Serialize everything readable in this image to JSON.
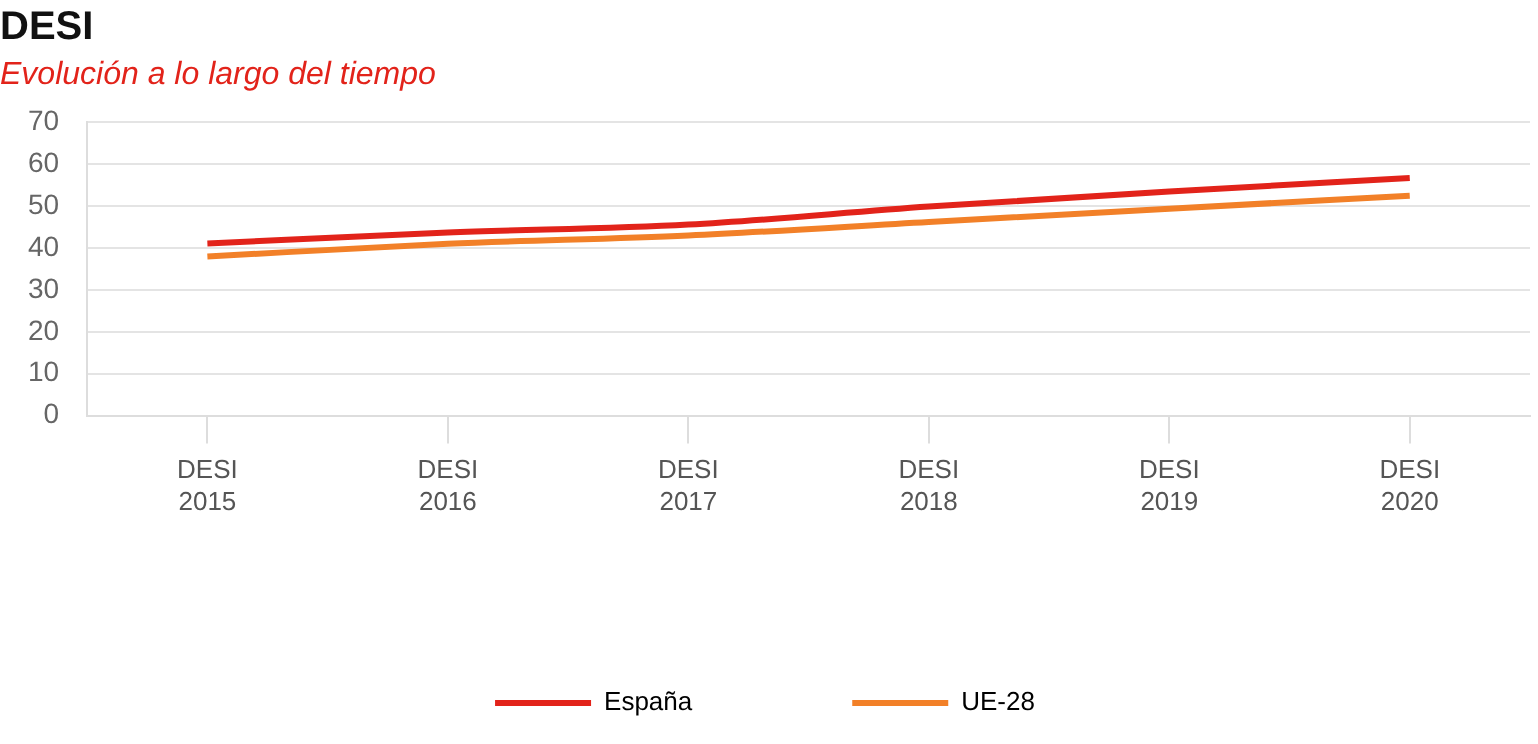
{
  "chart_data": {
    "type": "line",
    "title": "DESI",
    "subtitle": "Evolución a lo largo del tiempo",
    "categories": [
      "DESI 2015",
      "DESI 2016",
      "DESI 2017",
      "DESI 2018",
      "DESI 2019",
      "DESI 2020"
    ],
    "series": [
      {
        "name": "España",
        "color": "#e2231a",
        "values": [
          41.1,
          43.7,
          45.6,
          49.9,
          53.5,
          56.7
        ]
      },
      {
        "name": "UE-28",
        "color": "#f28028",
        "values": [
          38.0,
          41.0,
          43.0,
          46.2,
          49.4,
          52.5
        ]
      }
    ],
    "ylim": [
      0,
      70
    ],
    "yticks": [
      0,
      10,
      20,
      30,
      40,
      50,
      60,
      70
    ],
    "grid": "y",
    "legend": "bottom",
    "marker": "none",
    "line_style": "solid"
  }
}
